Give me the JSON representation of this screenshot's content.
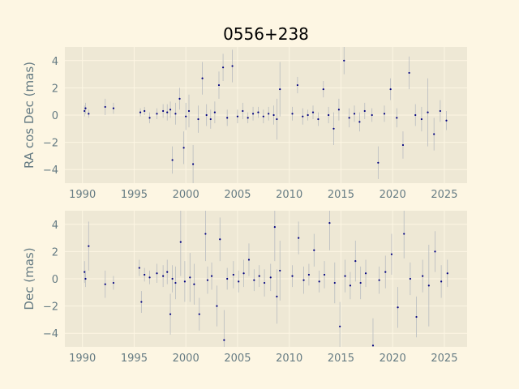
{
  "title": "0556+238",
  "colors": {
    "figure_bg": "#fdf6e3",
    "plot_bg": "#eee8d5",
    "grid": "#fdf6e3",
    "point": "#000080",
    "errorbar": "#b8bcc0",
    "text": "#657b83"
  },
  "chart_data": [
    {
      "type": "scatter",
      "panel": "top",
      "title": "0556+238",
      "xlabel": "",
      "ylabel": "RA cos Dec (mas)",
      "xlim": [
        1988.3,
        2027.2
      ],
      "ylim": [
        -5,
        5
      ],
      "xticks": [
        1990,
        1995,
        2000,
        2005,
        2010,
        2015,
        2020,
        2025
      ],
      "yticks": [
        -4,
        -2,
        0,
        2,
        4
      ],
      "grid": true,
      "series": [
        {
          "x": [
            1990.2,
            1990.3,
            1990.6,
            1992.2,
            1993.0,
            1995.6,
            1996.0,
            1996.5,
            1997.2,
            1997.8,
            1998.2,
            1998.5,
            1998.7,
            1999.0,
            1999.4,
            1999.8,
            2000.0,
            2000.3,
            2000.7,
            2001.2,
            2001.6,
            2002.0,
            2002.4,
            2002.8,
            2003.2,
            2003.6,
            2004.0,
            2004.5,
            2005.0,
            2005.5,
            2006.0,
            2006.5,
            2007.0,
            2007.5,
            2008.0,
            2008.5,
            2008.8,
            2009.1,
            2010.3,
            2010.8,
            2011.3,
            2011.8,
            2012.3,
            2012.8,
            2013.3,
            2013.8,
            2014.3,
            2014.8,
            2015.3,
            2015.8,
            2016.3,
            2016.8,
            2017.3,
            2018.0,
            2018.6,
            2019.2,
            2019.8,
            2020.4,
            2021.0,
            2021.6,
            2022.2,
            2022.8,
            2023.4,
            2024.0,
            2024.6,
            2025.2
          ],
          "y": [
            0.3,
            0.5,
            0.1,
            0.6,
            0.5,
            0.2,
            0.3,
            -0.2,
            0.1,
            0.3,
            0.2,
            0.4,
            -3.3,
            0.1,
            1.2,
            -2.4,
            -0.1,
            0.3,
            -3.6,
            -0.3,
            2.7,
            0.0,
            -0.3,
            0.2,
            2.2,
            3.5,
            -0.2,
            3.6,
            -0.1,
            0.3,
            -0.2,
            0.1,
            0.2,
            -0.1,
            0.1,
            0.0,
            -0.3,
            1.9,
            0.1,
            2.2,
            -0.1,
            0.0,
            0.2,
            -0.3,
            1.9,
            0.0,
            -1.0,
            0.4,
            4.0,
            -0.2,
            0.1,
            -0.5,
            0.3,
            0.0,
            -3.5,
            0.1,
            1.9,
            -0.2,
            -2.2,
            3.1,
            0.0,
            -0.3,
            0.2,
            -1.4,
            0.3,
            -0.4
          ],
          "yerr": [
            0.4,
            0.4,
            0.3,
            0.6,
            0.4,
            0.3,
            0.3,
            0.4,
            0.4,
            0.5,
            0.6,
            0.6,
            1.0,
            0.8,
            0.8,
            1.2,
            1.0,
            1.2,
            1.4,
            1.0,
            1.2,
            0.8,
            0.7,
            0.8,
            1.0,
            1.0,
            0.6,
            1.2,
            0.5,
            0.6,
            0.4,
            0.5,
            0.4,
            0.5,
            0.5,
            0.7,
            1.5,
            2.0,
            0.5,
            0.6,
            0.6,
            0.4,
            0.5,
            0.5,
            0.6,
            0.6,
            1.2,
            0.8,
            1.0,
            0.7,
            0.6,
            0.7,
            0.6,
            0.5,
            1.2,
            0.6,
            0.8,
            0.7,
            1.0,
            1.2,
            0.8,
            0.9,
            2.5,
            1.2,
            0.8,
            0.7
          ]
        }
      ]
    },
    {
      "type": "scatter",
      "panel": "bottom",
      "xlabel": "",
      "ylabel": "Dec (mas)",
      "xlim": [
        1988.3,
        2027.2
      ],
      "ylim": [
        -5,
        5
      ],
      "xticks": [
        1990,
        1995,
        2000,
        2005,
        2010,
        2015,
        2020,
        2025
      ],
      "yticks": [
        -4,
        -2,
        0,
        2,
        4
      ],
      "grid": true,
      "series": [
        {
          "x": [
            1990.2,
            1990.3,
            1990.6,
            1992.2,
            1993.0,
            1995.5,
            1995.7,
            1996.0,
            1996.5,
            1997.2,
            1997.8,
            1998.2,
            1998.5,
            1998.7,
            1999.0,
            1999.5,
            1999.9,
            2000.4,
            2000.8,
            2001.3,
            2001.9,
            2002.1,
            2002.5,
            2003.0,
            2003.3,
            2003.7,
            2004.0,
            2004.6,
            2005.1,
            2005.6,
            2006.1,
            2006.6,
            2007.1,
            2007.6,
            2008.2,
            2008.6,
            2008.8,
            2009.1,
            2010.3,
            2010.9,
            2011.4,
            2011.9,
            2012.4,
            2012.9,
            2013.4,
            2013.9,
            2014.4,
            2014.9,
            2015.4,
            2015.9,
            2016.4,
            2016.9,
            2017.4,
            2018.1,
            2018.7,
            2019.3,
            2019.9,
            2020.5,
            2021.1,
            2021.7,
            2022.3,
            2022.9,
            2023.5,
            2024.1,
            2024.7,
            2025.3
          ],
          "y": [
            0.5,
            0.0,
            2.4,
            -0.4,
            -0.3,
            0.8,
            -1.7,
            0.3,
            0.1,
            0.4,
            0.2,
            0.5,
            -2.6,
            0.0,
            -0.3,
            2.7,
            -0.2,
            0.1,
            -0.4,
            -2.6,
            3.3,
            -0.1,
            0.2,
            -2.0,
            2.9,
            -4.5,
            0.0,
            0.3,
            -0.2,
            0.4,
            1.4,
            -0.1,
            0.2,
            -0.3,
            0.1,
            3.8,
            -1.3,
            0.6,
            0.2,
            3.0,
            -0.1,
            0.3,
            2.1,
            -0.2,
            0.3,
            4.1,
            -0.3,
            -3.5,
            0.2,
            -0.5,
            1.3,
            -0.3,
            0.4,
            -4.9,
            -0.1,
            0.5,
            1.8,
            -2.1,
            3.3,
            0.0,
            -2.8,
            0.2,
            -0.5,
            2.0,
            -0.2,
            0.4
          ],
          "yerr": [
            0.8,
            0.6,
            1.8,
            1.0,
            0.5,
            0.6,
            0.8,
            0.5,
            0.5,
            0.7,
            0.8,
            0.9,
            1.5,
            1.0,
            1.2,
            2.5,
            1.5,
            1.8,
            1.5,
            1.2,
            2.0,
            1.0,
            1.0,
            1.5,
            1.6,
            2.2,
            0.8,
            1.0,
            0.8,
            1.0,
            1.2,
            0.8,
            0.8,
            1.0,
            1.0,
            2.5,
            2.0,
            2.2,
            0.8,
            1.2,
            1.0,
            0.8,
            1.2,
            0.8,
            1.0,
            2.0,
            1.5,
            1.8,
            1.2,
            1.0,
            1.5,
            1.2,
            1.0,
            2.0,
            1.0,
            1.2,
            1.5,
            1.5,
            1.8,
            1.2,
            1.5,
            1.2,
            3.0,
            1.5,
            1.2,
            1.0
          ]
        }
      ]
    }
  ]
}
